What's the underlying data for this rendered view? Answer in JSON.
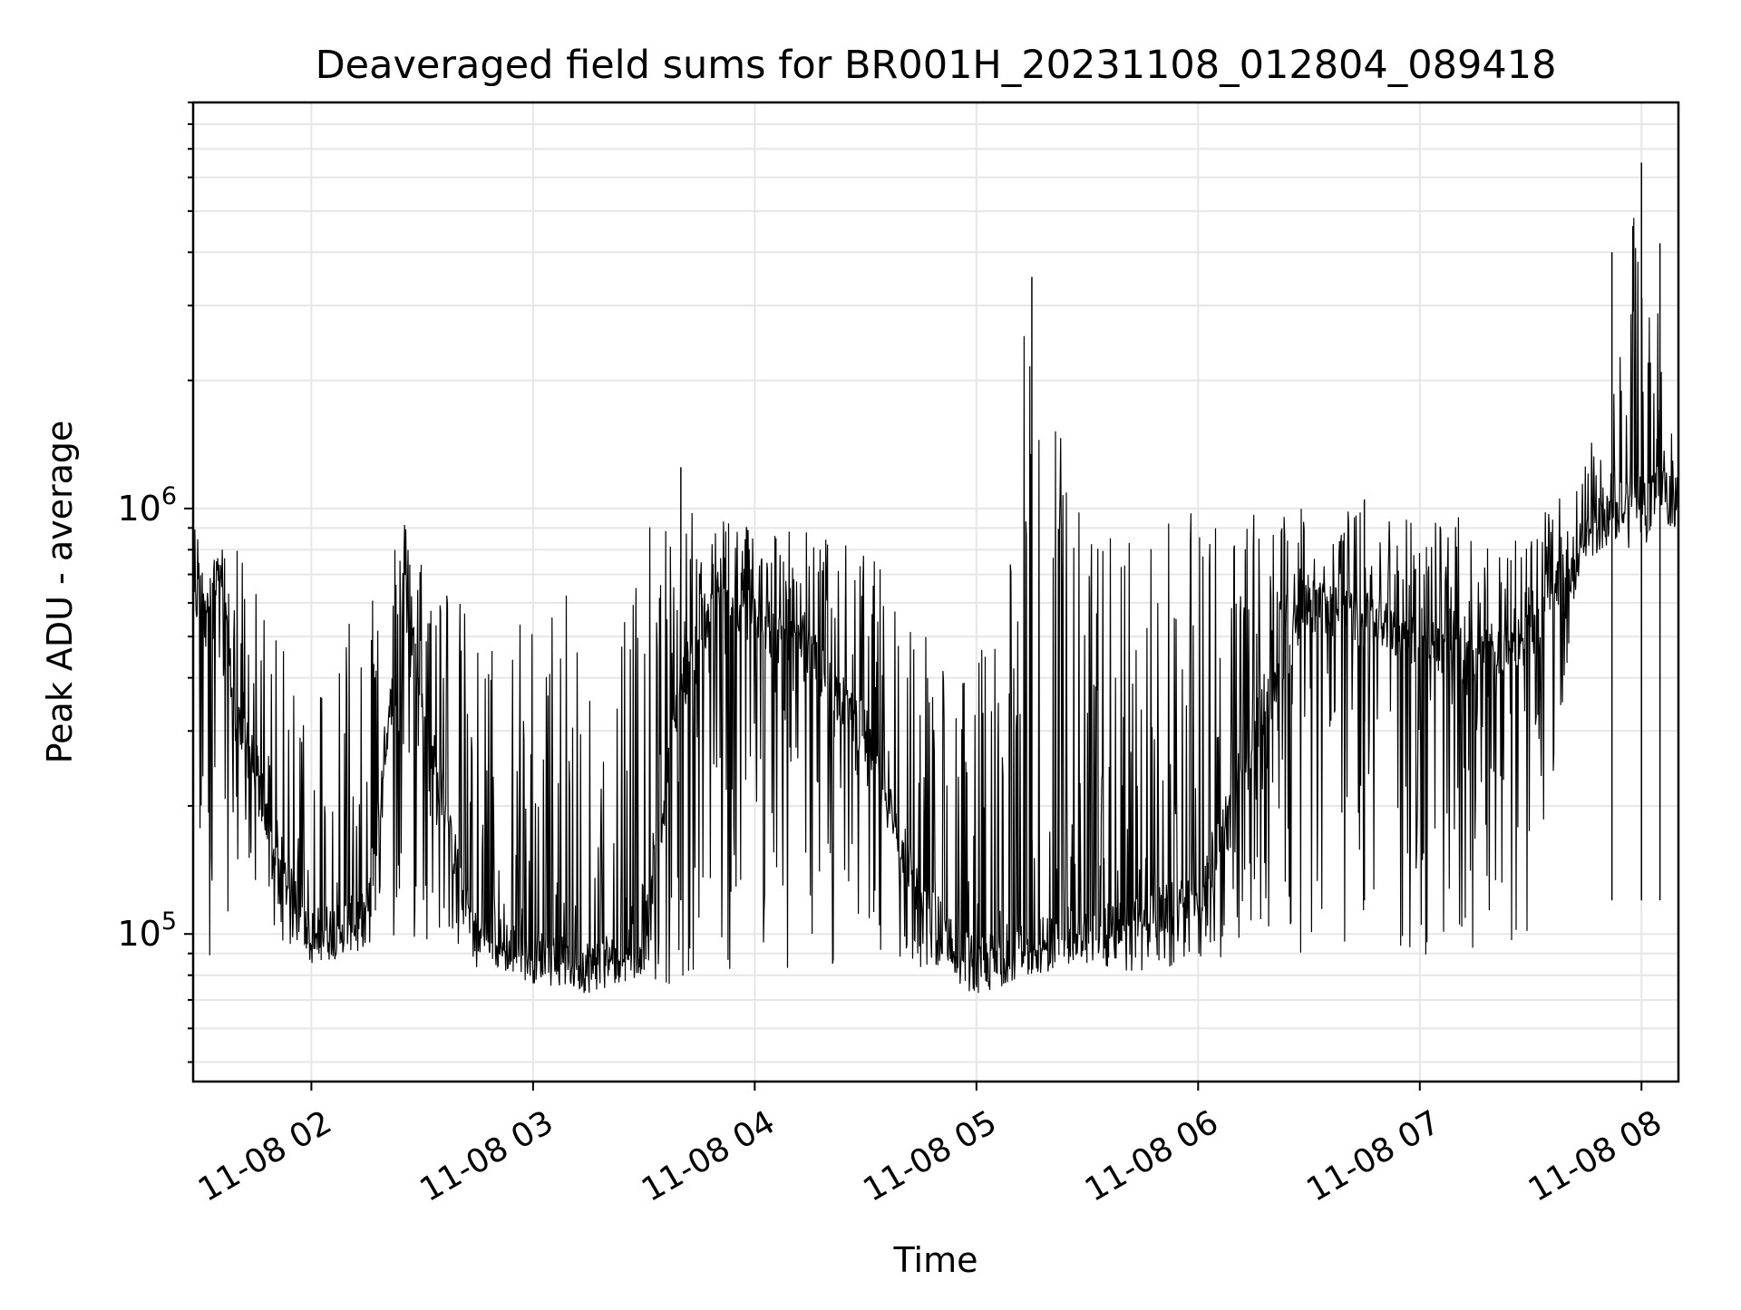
{
  "chart_data": {
    "type": "line",
    "title": "Deaveraged field sums for BR001H_20231108_012804_089418",
    "xlabel": "Time",
    "ylabel": "Peak ADU - average",
    "yscale": "log",
    "ylim": [
      45000,
      9000000
    ],
    "xlim": [
      "11-08 01:28",
      "11-08 08:10"
    ],
    "grid": true,
    "line_color": "#000000",
    "grid_color": "#e6e6e6",
    "x_ticks": [
      "11-08 02",
      "11-08 03",
      "11-08 04",
      "11-08 05",
      "11-08 06",
      "11-08 07",
      "11-08 08"
    ],
    "y_ticks": [
      {
        "base": "10",
        "exp": "5",
        "value": 100000
      },
      {
        "base": "10",
        "exp": "6",
        "value": 1000000
      }
    ],
    "series": [
      {
        "x": [
          "11-08 01:28",
          "11-08 01:35",
          "11-08 01:40",
          "11-08 01:45",
          "11-08 01:50",
          "11-08 02:00",
          "11-08 02:15",
          "11-08 02:25",
          "11-08 02:35",
          "11-08 02:45",
          "11-08 03:00",
          "11-08 03:15",
          "11-08 03:30",
          "11-08 03:40",
          "11-08 03:50",
          "11-08 04:00",
          "11-08 04:15",
          "11-08 04:30",
          "11-08 04:45",
          "11-08 05:00",
          "11-08 05:15",
          "11-08 05:30",
          "11-08 05:45",
          "11-08 06:00",
          "11-08 06:15",
          "11-08 06:30",
          "11-08 06:45",
          "11-08 07:00",
          "11-08 07:15",
          "11-08 07:30",
          "11-08 07:43",
          "11-08 07:50",
          "11-08 08:00",
          "11-08 08:10"
        ],
        "y_low": [
          85000,
          85000,
          150000,
          90000,
          100000,
          85000,
          90000,
          95000,
          90000,
          82000,
          80000,
          72000,
          78000,
          75000,
          80000,
          80000,
          82000,
          80000,
          80000,
          70000,
          80000,
          85000,
          80000,
          85000,
          85000,
          90000,
          90000,
          85000,
          88000,
          90000,
          700000,
          800000,
          800000,
          950000
        ],
        "y_high": [
          950000,
          800000,
          900000,
          700000,
          500000,
          400000,
          900000,
          950000,
          800000,
          500000,
          600000,
          650000,
          900000,
          980000,
          1000000,
          950000,
          900000,
          800000,
          600000,
          400000,
          3500000,
          900000,
          950000,
          1000000,
          1000000,
          1000000,
          1000000,
          1000000,
          950000,
          900000,
          1200000,
          1700000,
          6500000,
          1100000
        ],
        "y_typical": [
          600000,
          700000,
          300000,
          250000,
          150000,
          100000,
          110000,
          650000,
          200000,
          100000,
          90000,
          85000,
          95000,
          400000,
          600000,
          550000,
          450000,
          300000,
          120000,
          85000,
          95000,
          100000,
          110000,
          120000,
          300000,
          600000,
          550000,
          500000,
          450000,
          500000,
          800000,
          1000000,
          1100000,
          1050000
        ],
        "spikiness": 0.55
      }
    ]
  }
}
